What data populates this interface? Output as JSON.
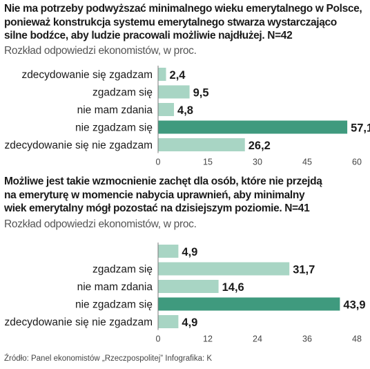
{
  "source": "Źródło: Panel ekonomistów „Rzeczpospolitej”   Infografika: K",
  "colors": {
    "bar": "#a8d5c4",
    "bar_highlight": "#3f9a7e",
    "axis": "#7a7a7a"
  },
  "chart_data": [
    {
      "type": "bar",
      "orientation": "horizontal",
      "title_lines": [
        "Nie ma potrzeby podwyższać minimalnego wieku emerytalnego w Polsce,",
        "ponieważ konstrukcja systemu emerytalnego stwarza wystarczająco",
        "silne bodźce, aby ludzie pracowali możliwie najdłużej. N=42"
      ],
      "subtitle": "Rozkład odpowiedzi ekonomistów, w proc.",
      "categories": [
        "zdecydowanie się zgadzam",
        "zgadzam się",
        "nie mam zdania",
        "nie zgadzam się",
        "zdecydowanie się nie zgadzam"
      ],
      "values": [
        2.4,
        9.5,
        4.8,
        57.1,
        26.2
      ],
      "value_labels": [
        "2,4",
        "9,5",
        "4,8",
        "57,1",
        "26,2"
      ],
      "highlight_index": 3,
      "xlim": [
        0,
        60
      ],
      "xticks": [
        0,
        15,
        30,
        45,
        60
      ],
      "xlabel": "",
      "ylabel": "",
      "grid": false
    },
    {
      "type": "bar",
      "orientation": "horizontal",
      "title_lines": [
        "Możliwe jest takie wzmocnienie zachęt dla osób, które nie przejdą",
        "na emeryturę w momencie nabycia uprawnień, aby minimalny",
        "wiek emerytalny mógł pozostać na dzisiejszym poziomie. N=41"
      ],
      "subtitle": "Rozkład odpowiedzi ekonomistów, w proc.",
      "categories": [
        "",
        "zgadzam się",
        "nie mam zdania",
        "nie zgadzam się",
        "zdecydowanie się nie zgadzam"
      ],
      "values": [
        4.9,
        31.7,
        14.6,
        43.9,
        4.9
      ],
      "value_labels": [
        "4,9",
        "31,7",
        "14,6",
        "43,9",
        "4,9"
      ],
      "highlight_index": 3,
      "xlim": [
        0,
        48
      ],
      "xticks": [
        0,
        12,
        24,
        36,
        48
      ],
      "xlabel": "",
      "ylabel": "",
      "grid": false
    }
  ]
}
